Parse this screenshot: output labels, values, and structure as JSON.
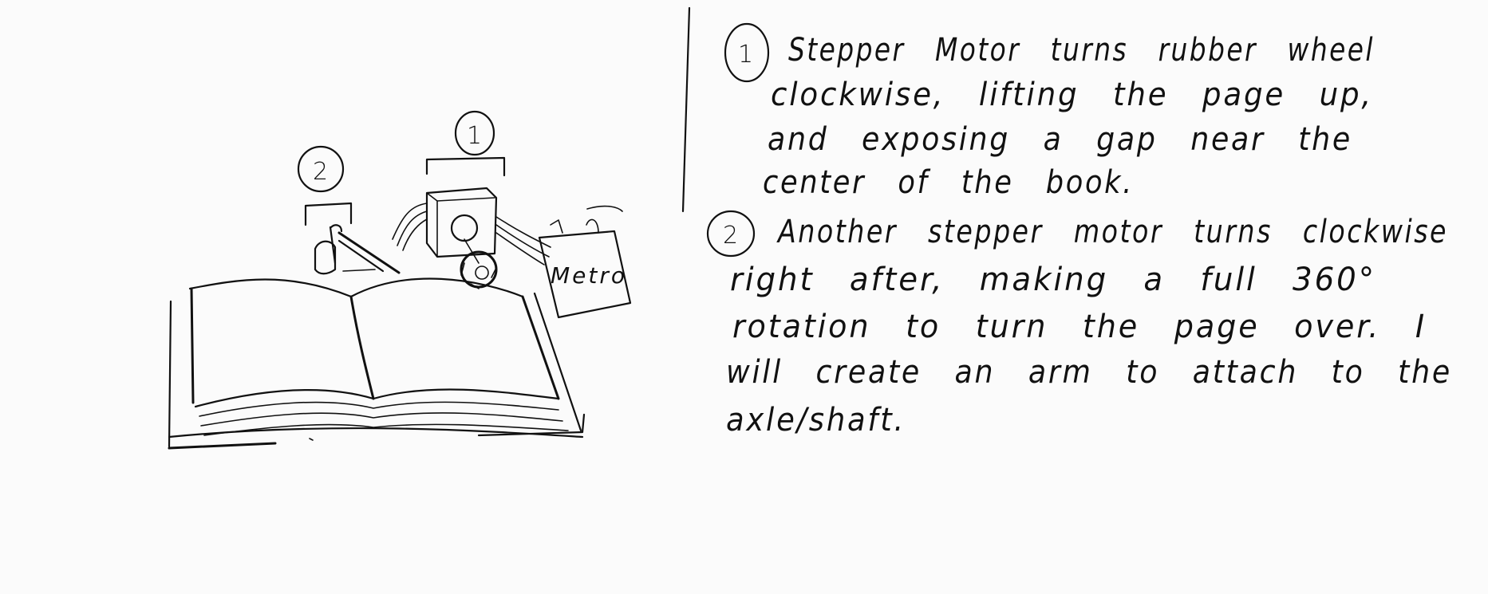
{
  "sketch": {
    "callout_1": "1",
    "callout_2": "2",
    "box_label": "Metro"
  },
  "notes": [
    {
      "number": "1",
      "lines": [
        "Stepper Motor turns rubber wheel",
        "clockwise, lifting the page up,",
        "and exposing a gap near the",
        "center of the book."
      ]
    },
    {
      "number": "2",
      "lines": [
        "Another stepper motor turns clockwise",
        "right after, making a full 360°",
        "rotation to turn the page over. I",
        "will create an arm to attach to the",
        "axle/shaft."
      ]
    }
  ]
}
